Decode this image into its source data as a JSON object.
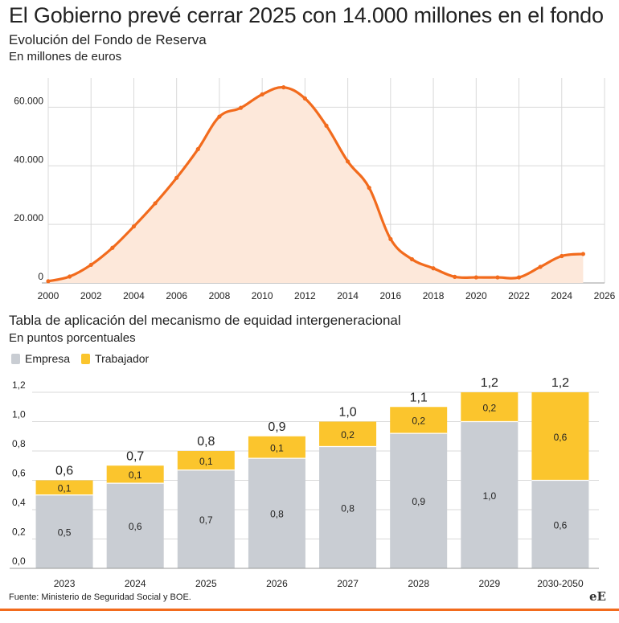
{
  "header": {
    "title": "El Gobierno prevé cerrar 2025 con 14.000 millones en el fondo",
    "subtitle": "Evolución del Fondo de Reserva",
    "unit": "En millones de euros"
  },
  "second_header": {
    "subtitle": "Tabla de aplicación del mecanismo de equidad intergeneracional",
    "unit": "En puntos porcentuales"
  },
  "colors": {
    "line": "#f26b1d",
    "area": "#fde8da",
    "empresa": "#c9cdd3",
    "trabajador": "#fbc52d",
    "grid": "#d9d9d9"
  },
  "chart_data": [
    {
      "type": "area",
      "title": "",
      "xlabel": "",
      "ylabel": "",
      "x_ticks": [
        "2000",
        "2002",
        "2004",
        "2006",
        "2008",
        "2010",
        "2012",
        "2014",
        "2016",
        "2018",
        "2020",
        "2022",
        "2024",
        "2026"
      ],
      "y_ticks": [
        "0",
        "20.000",
        "40.000",
        "60.000"
      ],
      "xlim": [
        2000,
        2026
      ],
      "ylim": [
        0,
        70000
      ],
      "grid": true,
      "series": [
        {
          "x": [
            2000,
            2001,
            2002,
            2003,
            2004,
            2005,
            2006,
            2007,
            2008,
            2009,
            2010,
            2011,
            2012,
            2013,
            2014,
            2015,
            2016,
            2017,
            2018,
            2019,
            2020,
            2021,
            2022,
            2023,
            2024,
            2025
          ],
          "values": [
            600,
            2200,
            6200,
            12000,
            19300,
            27200,
            35900,
            45700,
            56800,
            59800,
            64400,
            66800,
            63000,
            53700,
            41500,
            32500,
            15000,
            8100,
            5000,
            2100,
            1900,
            1900,
            1900,
            5500,
            9200,
            9900
          ]
        }
      ]
    },
    {
      "type": "bar",
      "title": "",
      "legend": [
        "Empresa",
        "Trabajador"
      ],
      "legend_position": "top-left",
      "categories": [
        "2023",
        "2024",
        "2025",
        "2026",
        "2027",
        "2028",
        "2029",
        "2030-2050"
      ],
      "y_ticks": [
        "0,0",
        "0,2",
        "0,4",
        "0,6",
        "0,8",
        "1,0",
        "1,2"
      ],
      "ylim": [
        0,
        1.2
      ],
      "grid": true,
      "series": [
        {
          "name": "Empresa",
          "values": [
            0.5,
            0.58,
            0.67,
            0.75,
            0.83,
            0.92,
            1.0,
            0.6
          ],
          "labels": [
            "0,5",
            "0,6",
            "0,7",
            "0,8",
            "0,8",
            "0,9",
            "1,0",
            "0,6"
          ]
        },
        {
          "name": "Trabajador",
          "values": [
            0.1,
            0.12,
            0.13,
            0.15,
            0.17,
            0.18,
            0.2,
            0.6
          ],
          "labels": [
            "0,1",
            "0,1",
            "0,1",
            "0,1",
            "0,2",
            "0,2",
            "0,2",
            "0,6"
          ]
        }
      ],
      "totals": [
        "0,6",
        "0,7",
        "0,8",
        "0,9",
        "1,0",
        "1,1",
        "1,2",
        "1,2"
      ]
    }
  ],
  "footer": {
    "source": "Fuente: Ministerio de Seguridad Social y BOE.",
    "logo": "eE"
  }
}
